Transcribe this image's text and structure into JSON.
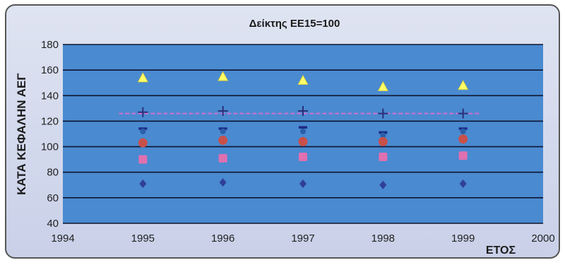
{
  "chart_data": {
    "type": "scatter",
    "title": "Δείκτης ΕΕ15=100",
    "xlabel": "ΕΤΟΣ",
    "ylabel": "ΚΑΤΑ ΚΕΦΑΛΗΝ ΑΕΓ",
    "xlim": [
      1994,
      2000
    ],
    "ylim": [
      40,
      180
    ],
    "xticks": [
      "1994",
      "1995",
      "1996",
      "1997",
      "1998",
      "1999",
      "2000"
    ],
    "yticks": [
      "40",
      "60",
      "80",
      "100",
      "120",
      "140",
      "160",
      "180"
    ],
    "grid": true,
    "legend": "none",
    "x": [
      1995,
      1996,
      1997,
      1998,
      1999
    ],
    "series": [
      {
        "marker": "triangle",
        "color": "#ffff66",
        "values": [
          154,
          155,
          152,
          147,
          148
        ]
      },
      {
        "marker": "plus",
        "color": "#2b2f7a",
        "values": [
          127,
          128,
          128,
          126,
          126
        ]
      },
      {
        "marker": "dash",
        "color": "#1d2a86",
        "values": [
          114,
          114,
          115,
          111,
          114
        ]
      },
      {
        "marker": "dot",
        "color": "#2a5fa8",
        "values": [
          112,
          112,
          112,
          109,
          112
        ]
      },
      {
        "marker": "circle",
        "color": "#c8504a",
        "values": [
          103,
          105,
          104,
          104,
          106
        ]
      },
      {
        "marker": "square",
        "color": "#e070b0",
        "values": [
          90,
          91,
          92,
          92,
          93
        ]
      },
      {
        "marker": "diamond",
        "color": "#2f3f9a",
        "values": [
          71,
          72,
          71,
          70,
          71
        ]
      }
    ],
    "reference_line": {
      "color": "#d070d0",
      "style": "dashed",
      "x": [
        1994.7,
        1999.2
      ],
      "y": [
        126,
        126
      ]
    }
  }
}
